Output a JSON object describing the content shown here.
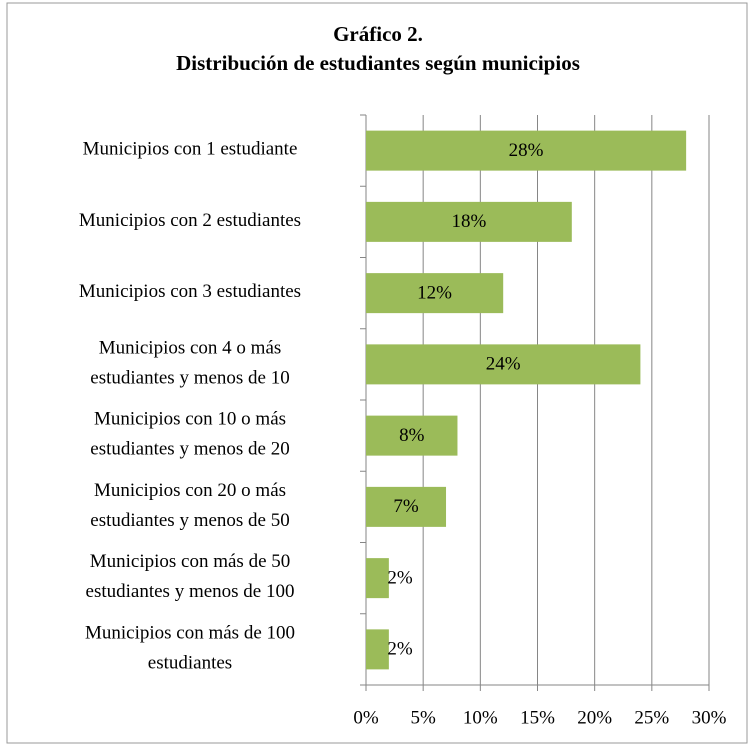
{
  "chart_data": {
    "type": "bar",
    "orientation": "horizontal",
    "title": "Gráfico 2.",
    "subtitle": "Distribución de estudiantes según municipios",
    "categories": [
      "Municipios con 1 estudiante",
      "Municipios con 2 estudiantes",
      "Municipios con 3 estudiantes",
      "Municipios con 4 o más\nestudiantes y menos de 10",
      "Municipios con 10  o más\nestudiantes y menos de 20",
      "Municipios con 20  o más\nestudiantes y menos de 50",
      "Municipios con más de 50\nestudiantes y menos de 100",
      "Municipios con más de 100\nestudiantes"
    ],
    "values": [
      28,
      18,
      12,
      24,
      8,
      7,
      2,
      2
    ],
    "value_labels": [
      "28%",
      "18%",
      "12%",
      "24%",
      "8%",
      "7%",
      "2%",
      "2%"
    ],
    "color": "#9bbb59",
    "xlim": [
      0,
      30
    ],
    "xticks": [
      {
        "value": 0,
        "label": "0%"
      },
      {
        "value": 5,
        "label": "5%"
      },
      {
        "value": 10,
        "label": "10%"
      },
      {
        "value": 15,
        "label": "15%"
      },
      {
        "value": 20,
        "label": "20%"
      },
      {
        "value": 25,
        "label": "25%"
      },
      {
        "value": 30,
        "label": "30%"
      }
    ],
    "grid": true
  }
}
